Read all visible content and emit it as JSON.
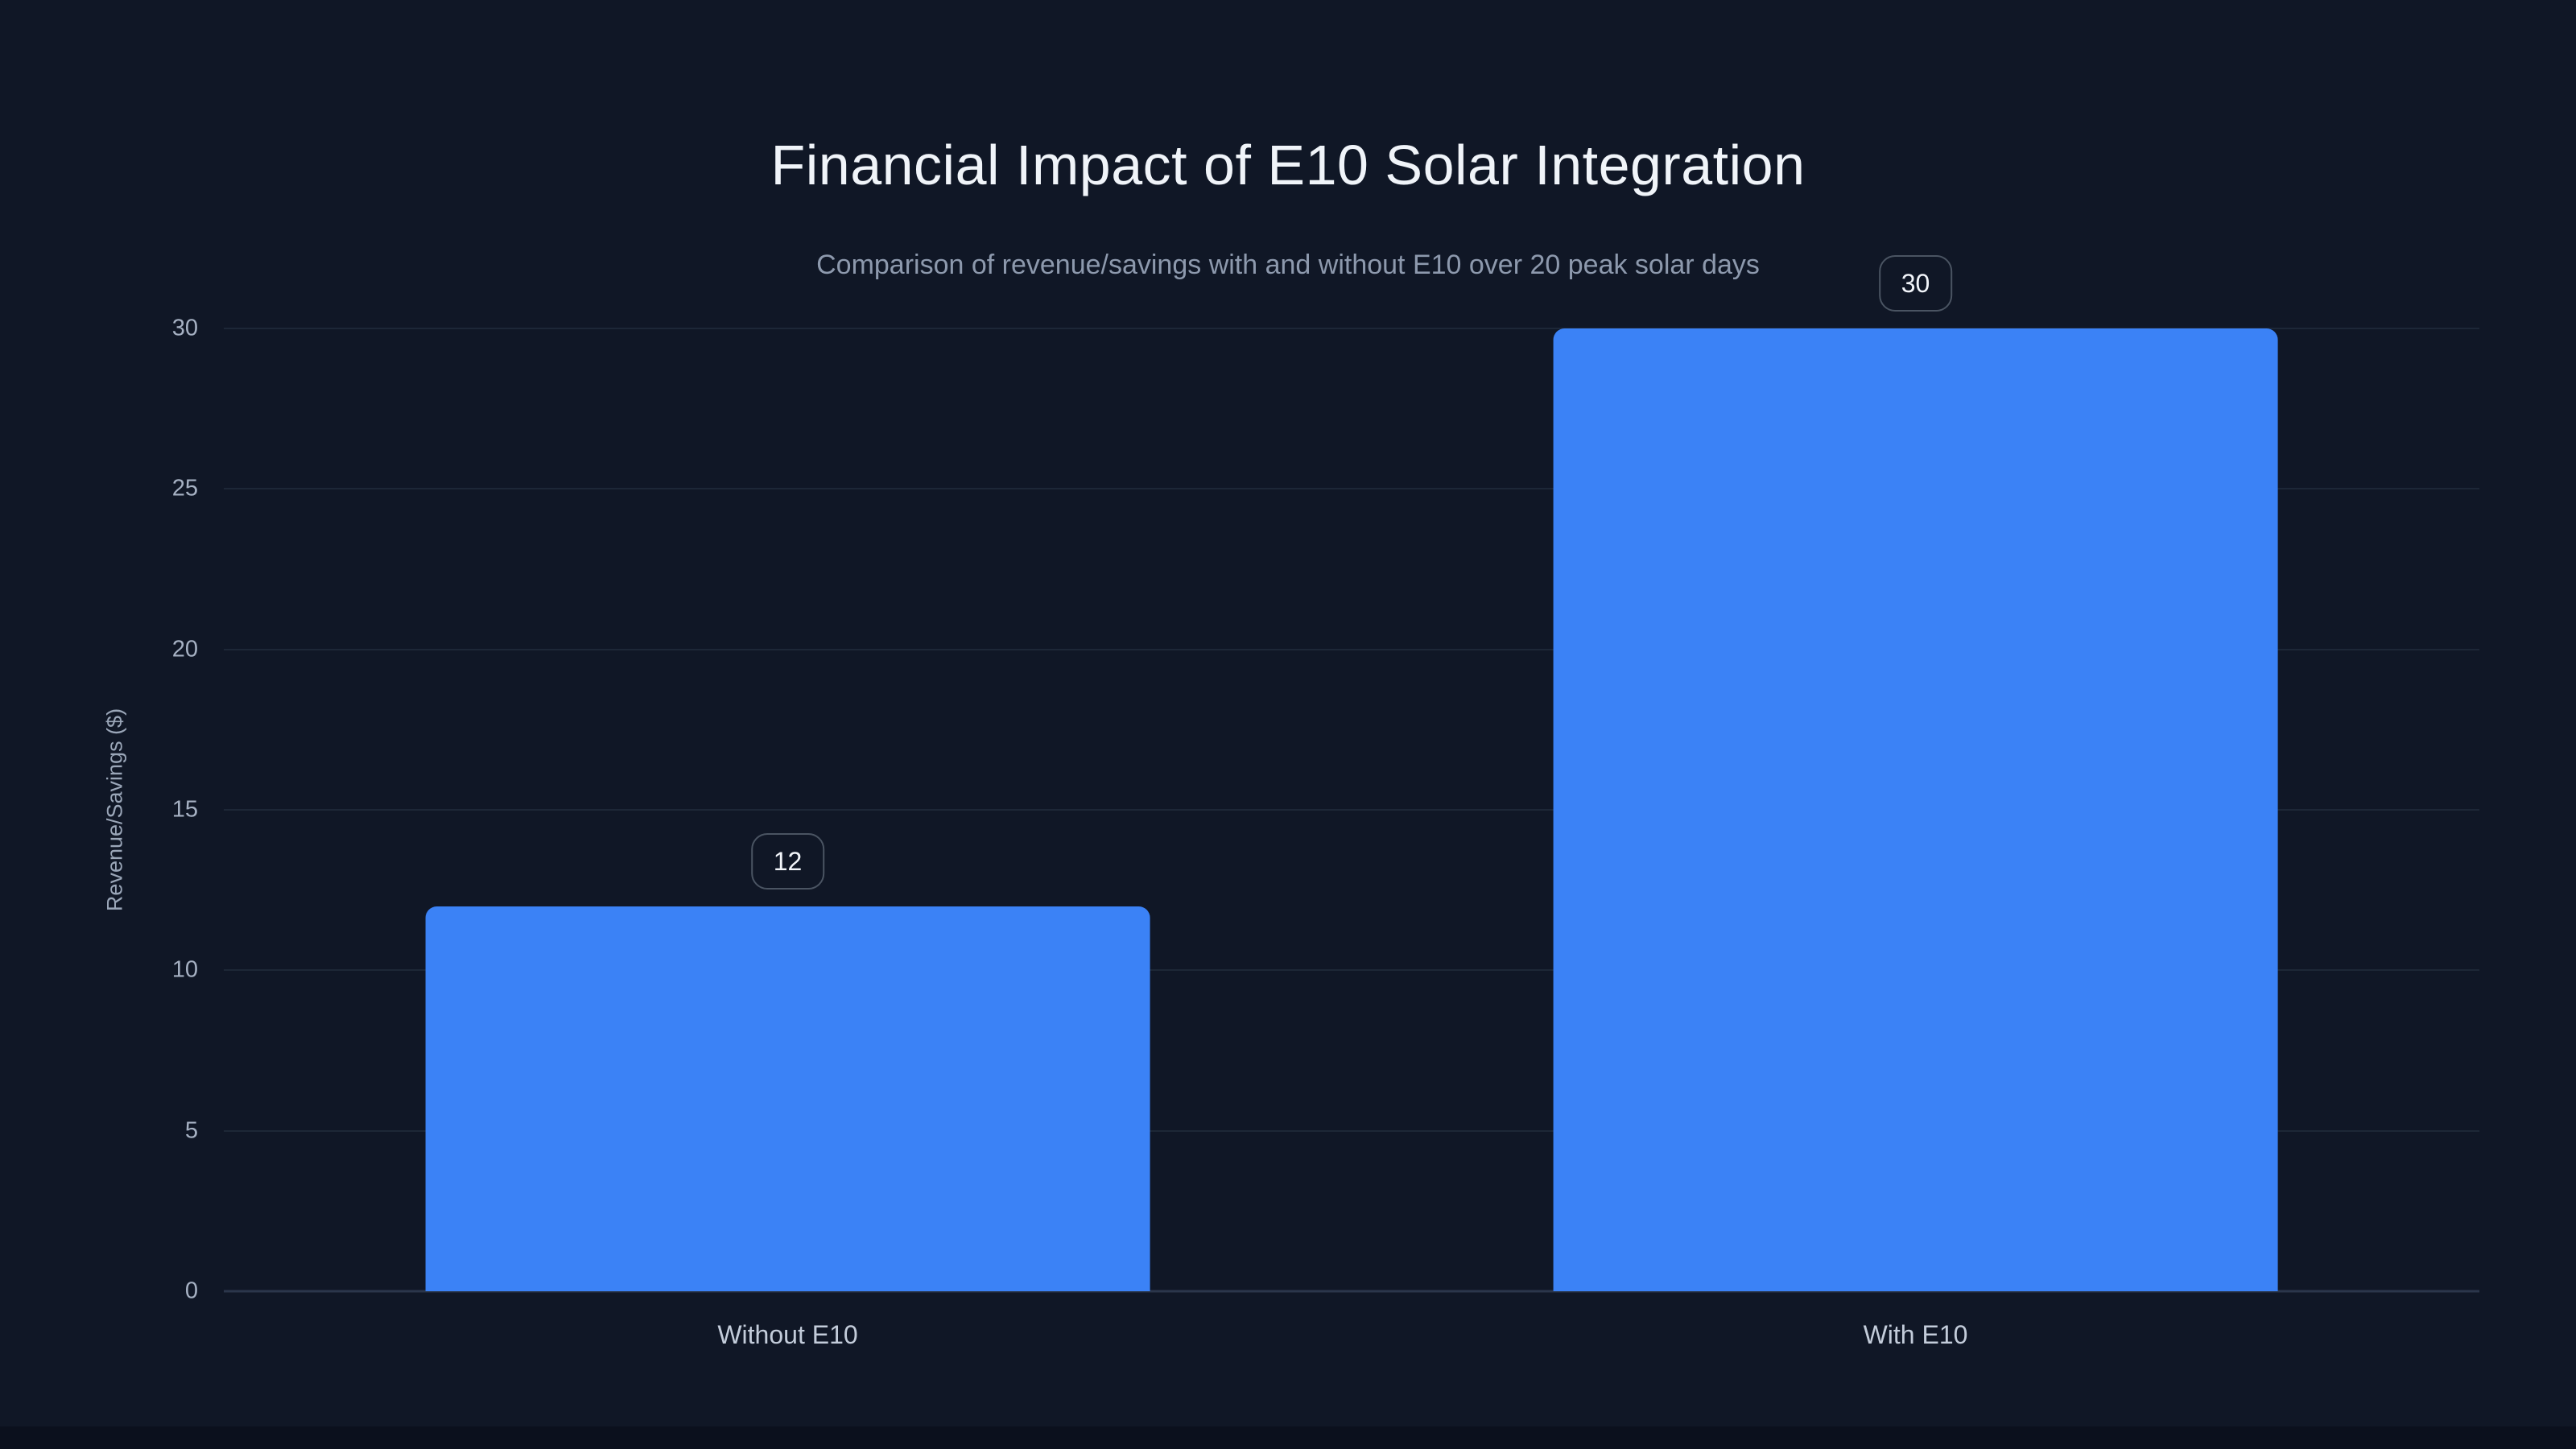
{
  "header": {
    "title": "Financial Impact of E10 Solar Integration",
    "subtitle": "Comparison of revenue/savings with and without E10 over 20 peak solar days"
  },
  "chart_data": {
    "type": "bar",
    "title": "Financial Impact of E10 Solar Integration",
    "subtitle": "Comparison of revenue/savings with and without E10 over 20 peak solar days",
    "categories": [
      "Without E10",
      "With E10"
    ],
    "values": [
      12,
      30
    ],
    "value_labels": [
      "12",
      "30"
    ],
    "xlabel": "",
    "ylabel": "Revenue/Savings ($)",
    "ylim": [
      0,
      30
    ],
    "yticks": [
      0,
      5,
      10,
      15,
      20,
      25,
      30
    ],
    "grid": true,
    "legend": false
  },
  "colors": {
    "background": "#101726",
    "page_edge": "#0b101d",
    "bar": "#3b82f6",
    "gridline": "#1d2737",
    "axis_line": "#2b364b",
    "title_text": "#f0f4f9",
    "subtitle_text": "#8d99ad",
    "tick_text": "#a6b1c3",
    "category_text": "#c3ccda",
    "badge_border": "#4a5462",
    "badge_text": "#f2f5fa"
  }
}
